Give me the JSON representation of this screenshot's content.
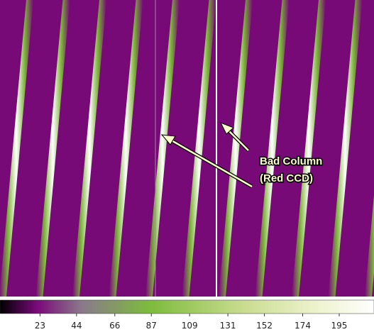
{
  "annotation": {
    "lines": [
      "Bad Column",
      "(Red CCD)"
    ]
  },
  "colorbar": {
    "range": [
      0,
      215
    ],
    "ticks": [
      23,
      44,
      66,
      87,
      109,
      131,
      152,
      174,
      195
    ]
  }
}
